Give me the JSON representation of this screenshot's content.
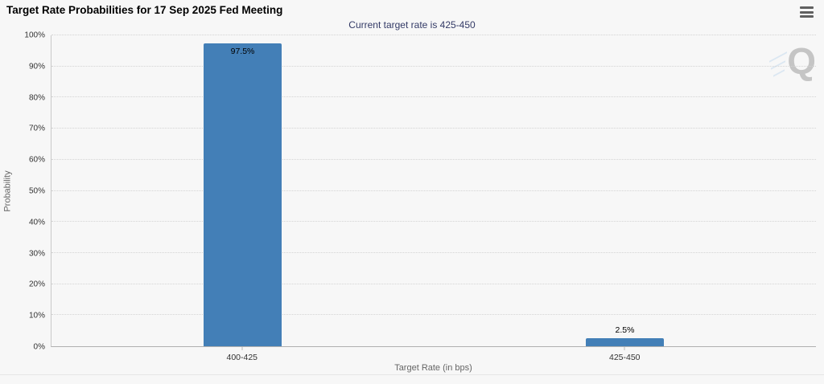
{
  "header": {
    "title": "Target Rate Probabilities for 17 Sep 2025 Fed Meeting",
    "subtitle": "Current target rate is 425-450"
  },
  "menu": {
    "icon": "hamburger-icon"
  },
  "watermark": {
    "letter": "Q"
  },
  "colors": {
    "bar": "#437fb7",
    "subtitle": "#333a66",
    "title": "#000000",
    "axis_text": "#333333",
    "axis_title": "#666666",
    "background": "#f7f7f7"
  },
  "chart_data": {
    "type": "bar",
    "title": "Target Rate Probabilities for 17 Sep 2025 Fed Meeting",
    "subtitle": "Current target rate is 425-450",
    "categories": [
      "400-425",
      "425-450"
    ],
    "values": [
      97.5,
      2.5
    ],
    "data_labels": [
      "97.5%",
      "2.5%"
    ],
    "xlabel": "Target Rate (in bps)",
    "ylabel": "Probability",
    "ylim": [
      0,
      100
    ],
    "yticks": [
      0,
      10,
      20,
      30,
      40,
      50,
      60,
      70,
      80,
      90,
      100
    ],
    "ytick_labels": [
      "0%",
      "10%",
      "20%",
      "30%",
      "40%",
      "50%",
      "60%",
      "70%",
      "80%",
      "90%",
      "100%"
    ],
    "grid": "horizontal-dotted",
    "legend": "none",
    "bar_color": "#437fb7"
  }
}
